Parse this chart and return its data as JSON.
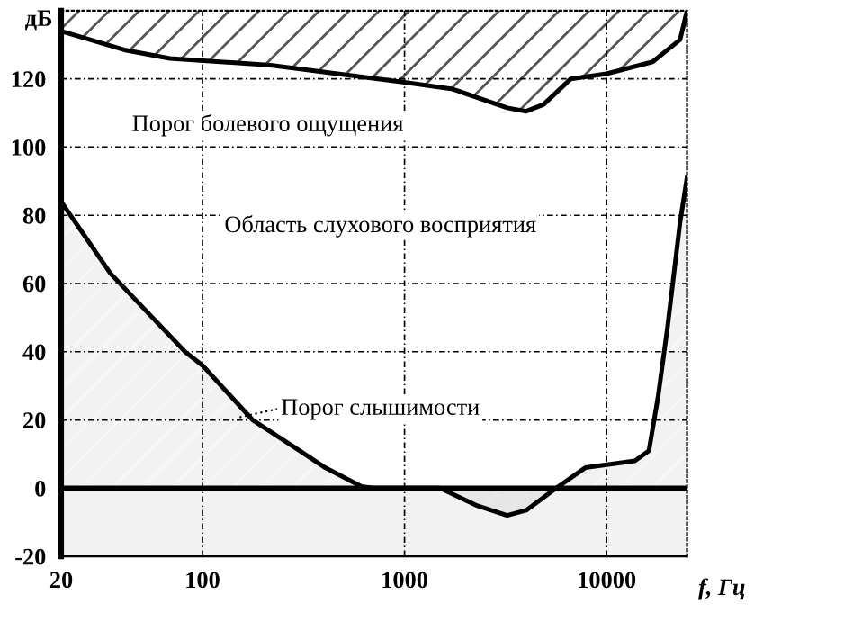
{
  "chart_data": {
    "type": "line",
    "ylabel": "дБ",
    "xlabel": "f, Гц",
    "log": "x",
    "xlim": [
      20,
      25000
    ],
    "ylim": [
      -20,
      140
    ],
    "xticks": [
      20,
      100,
      1000,
      10000
    ],
    "yticks": [
      -20,
      0,
      20,
      40,
      60,
      80,
      100,
      120
    ],
    "grid": true,
    "marker": "none",
    "line_style": "solid",
    "series": [
      {
        "color": "#000000",
        "x": [
          20,
          41,
          69,
          217,
          1000,
          1730,
          3220,
          4000,
          4880,
          6650,
          10000,
          16900,
          23100,
          25000
        ],
        "values": [
          134,
          128.5,
          126,
          124,
          119,
          117,
          111.5,
          110.5,
          112.5,
          120,
          121.5,
          125,
          131.5,
          140
        ]
      },
      {
        "type": "area",
        "color": "#000000",
        "x": [
          20,
          35,
          82,
          100,
          177,
          285,
          405,
          612,
          700,
          1500,
          2260,
          3220,
          4000,
          5630,
          7850,
          13800,
          16200,
          18000,
          20000,
          23100,
          25000
        ],
        "values": [
          84,
          63,
          40,
          36,
          20,
          12,
          6,
          0.5,
          0,
          0,
          -5,
          -8,
          -6.5,
          0,
          6,
          8,
          11,
          27,
          47,
          78,
          91
        ]
      }
    ],
    "bands": [
      {
        "axis": "y",
        "from": -20,
        "to": 0,
        "color": "#555555"
      }
    ],
    "ref_lines": [
      {
        "axis": "y",
        "value": 0,
        "color": "#000000",
        "line_style": "solid"
      }
    ],
    "annotations": [
      "Порог болевого ощущения",
      "Область слухового восприятия",
      "Порог слышимости"
    ]
  }
}
